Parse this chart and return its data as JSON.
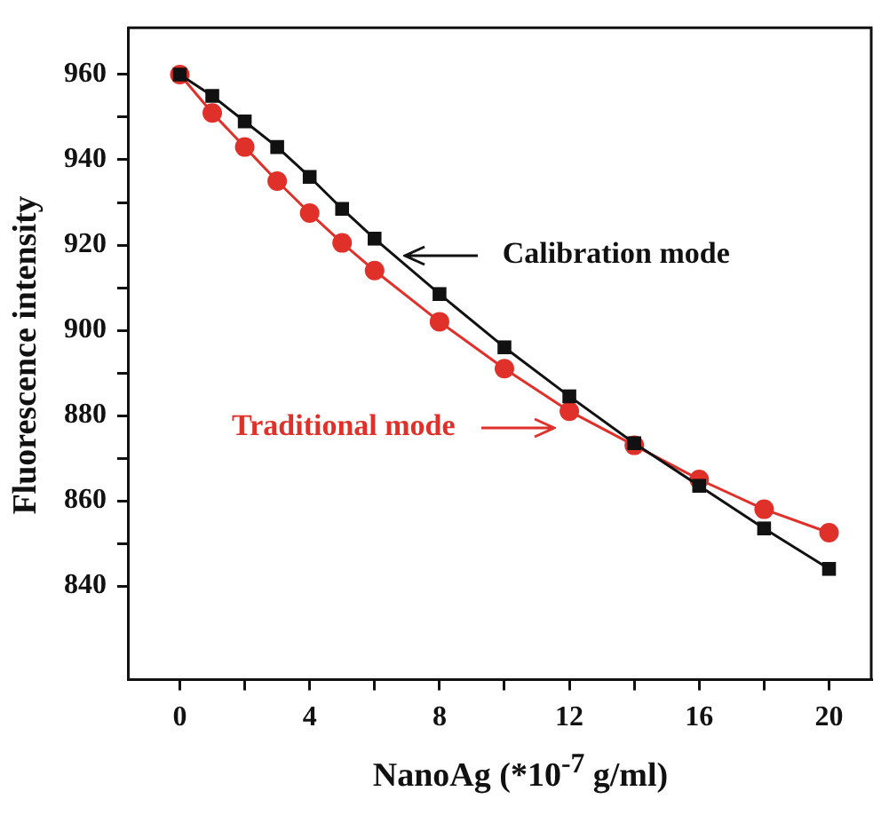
{
  "chart_data": {
    "type": "line",
    "xlabel": "NanoAg (*10$^{-7}$ g/ml)",
    "ylabel": "Fluorescence intensity",
    "x": [
      0,
      1,
      2,
      3,
      4,
      5,
      6,
      8,
      10,
      12,
      14,
      16,
      18,
      20
    ],
    "series": [
      {
        "name": "Calibration mode",
        "color": "#111111",
        "marker": "square",
        "values": [
          960,
          955,
          949,
          943,
          936,
          928.5,
          921.5,
          908.5,
          896,
          884.5,
          873.5,
          863.5,
          853.5,
          844
        ]
      },
      {
        "name": "Traditional mode",
        "color": "#e0302a",
        "marker": "circle",
        "values": [
          960,
          951,
          943,
          935,
          927.5,
          920.5,
          914,
          902,
          891,
          881,
          873,
          865,
          858,
          852.5
        ]
      }
    ],
    "xlim": [
      -1.6,
      21.3
    ],
    "ylim": [
      818,
      971
    ],
    "xticks": [
      0,
      {
        "value": 2,
        "label": null
      },
      4,
      {
        "value": 6,
        "label": null
      },
      8,
      {
        "value": 10,
        "label": null
      },
      12,
      {
        "value": 14,
        "label": null
      },
      16,
      {
        "value": 18,
        "label": null
      },
      20
    ],
    "yticks": [
      840,
      {
        "value": 850,
        "label": null
      },
      860,
      {
        "value": 870,
        "label": null
      },
      880,
      {
        "value": 890,
        "label": null
      },
      900,
      {
        "value": 910,
        "label": null
      },
      920,
      {
        "value": 930,
        "label": null
      },
      940,
      {
        "value": 950,
        "label": null
      },
      960
    ],
    "grid": false
  }
}
